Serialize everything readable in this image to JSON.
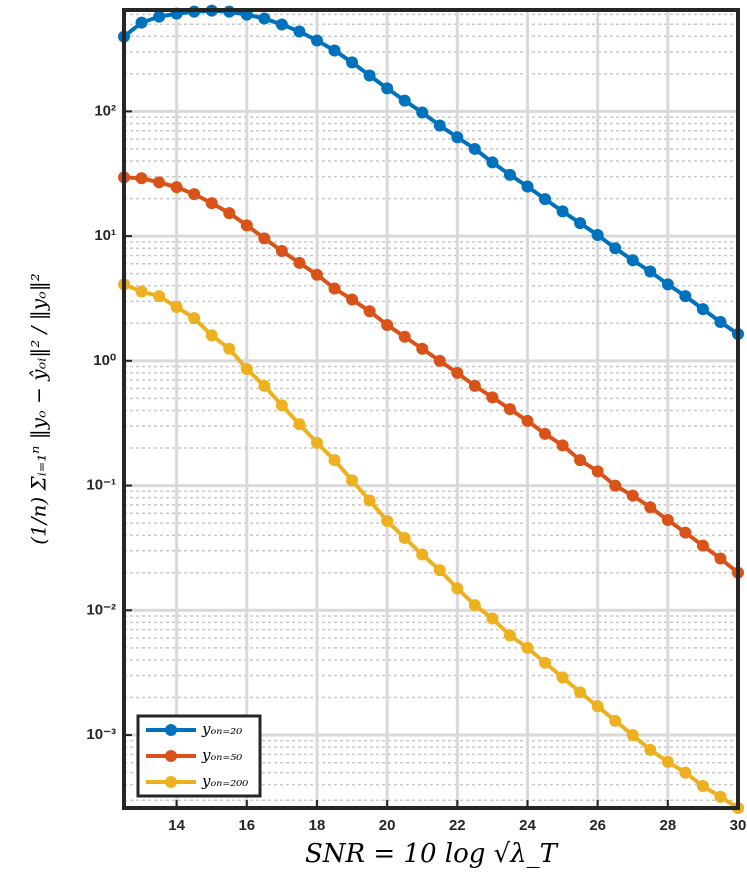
{
  "chart_data": {
    "type": "line",
    "xlabel": "SNR = 10 log √λ_T",
    "ylabel": "(1/n) Σᵢ₌₁ⁿ ‖yₒ − ŷₒᵢ‖² / ‖yₒ‖²",
    "x": [
      12.5,
      13,
      13.5,
      14,
      14.5,
      15,
      15.5,
      16,
      16.5,
      17,
      17.5,
      18,
      18.5,
      19,
      19.5,
      20,
      20.5,
      21,
      21.5,
      22,
      22.5,
      23,
      23.5,
      24,
      24.5,
      25,
      25.5,
      26,
      26.5,
      27,
      27.5,
      28,
      28.5,
      29,
      29.5,
      30
    ],
    "series": [
      {
        "name": "yₒₙ₌₂₀",
        "color": "#0072BD",
        "values": [
          398,
          515,
          575,
          608,
          631,
          643,
          631,
          597,
          555,
          497,
          437,
          370,
          308,
          247,
          194,
          153,
          122,
          98,
          77,
          62,
          50,
          39,
          31,
          25,
          19.8,
          15.8,
          12.7,
          10.2,
          8.0,
          6.4,
          5.2,
          4.1,
          3.3,
          2.6,
          2.05,
          1.64
        ]
      },
      {
        "name": "yₒₙ₌₅₀",
        "color": "#D95319",
        "values": [
          29.6,
          29.1,
          27,
          24.7,
          21.7,
          18.4,
          15.3,
          12.2,
          9.6,
          7.6,
          6.1,
          4.9,
          3.8,
          3.1,
          2.5,
          1.94,
          1.56,
          1.25,
          1.0,
          0.8,
          0.63,
          0.51,
          0.41,
          0.33,
          0.26,
          0.21,
          0.16,
          0.13,
          0.1,
          0.083,
          0.067,
          0.053,
          0.042,
          0.033,
          0.026,
          0.02
        ]
      },
      {
        "name": "yₒₙ₌₂₀₀",
        "color": "#EDB120",
        "values": [
          4.1,
          3.6,
          3.3,
          2.7,
          2.2,
          1.6,
          1.25,
          0.86,
          0.63,
          0.44,
          0.31,
          0.22,
          0.16,
          0.11,
          0.076,
          0.052,
          0.038,
          0.028,
          0.021,
          0.015,
          0.011,
          0.0086,
          0.0063,
          0.005,
          0.0038,
          0.0029,
          0.0022,
          0.0017,
          0.0013,
          0.001,
          0.00076,
          0.00061,
          0.0005,
          0.00039,
          0.00032,
          0.00026
        ]
      }
    ],
    "xlim": [
      12.5,
      30
    ],
    "xticks": [
      14,
      16,
      18,
      20,
      22,
      24,
      26,
      28,
      30
    ],
    "ylim": [
      0.00026,
      650
    ],
    "yscale": "log",
    "yticks": [
      {
        "value": 0.001,
        "label": "10⁻³"
      },
      {
        "value": 0.01,
        "label": "10⁻²"
      },
      {
        "value": 0.1,
        "label": "10⁻¹"
      },
      {
        "value": 1,
        "label": "10⁰"
      },
      {
        "value": 10,
        "label": "10¹"
      },
      {
        "value": 100,
        "label": "10²"
      }
    ],
    "grid": true,
    "legend": "lower left"
  }
}
